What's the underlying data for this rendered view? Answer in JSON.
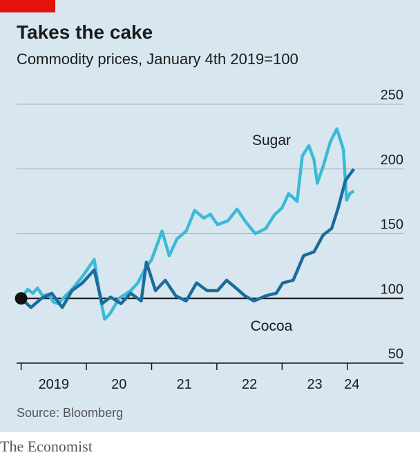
{
  "chart_data": {
    "type": "line",
    "title": "Takes the cake",
    "subtitle": "Commodity prices, January 4th 2019=100",
    "source": "Source: Bloomberg",
    "brand": "The Economist",
    "ylim": [
      50,
      250
    ],
    "yticks": [
      50,
      100,
      150,
      200,
      250
    ],
    "baseline": 100,
    "xlim": [
      2018.93,
      2024.86
    ],
    "xticks": [
      2019,
      2020,
      2021,
      2022,
      2023,
      2024
    ],
    "xlabels": [
      {
        "value": 2019.5,
        "label": "2019"
      },
      {
        "value": 2020.5,
        "label": "20"
      },
      {
        "value": 2021.5,
        "label": "21"
      },
      {
        "value": 2022.5,
        "label": "22"
      },
      {
        "value": 2023.5,
        "label": "23"
      },
      {
        "value": 2024.07,
        "label": "24"
      }
    ],
    "grid": true,
    "series": [
      {
        "name": "Sugar",
        "color": "#3bbad6",
        "x": [
          2019.0,
          2019.1,
          2019.18,
          2019.25,
          2019.33,
          2019.42,
          2019.5,
          2019.57,
          2019.68,
          2019.78,
          2019.94,
          2020.12,
          2020.21,
          2020.28,
          2020.36,
          2020.5,
          2020.68,
          2020.79,
          2020.89,
          2021.0,
          2021.16,
          2021.27,
          2021.39,
          2021.53,
          2021.66,
          2021.8,
          2021.9,
          2022.01,
          2022.17,
          2022.31,
          2022.43,
          2022.59,
          2022.75,
          2022.89,
          2023.0,
          2023.1,
          2023.23,
          2023.31,
          2023.41,
          2023.49,
          2023.54,
          2023.63,
          2023.74,
          2023.84,
          2023.94,
          2023.99,
          2024.04,
          2024.1
        ],
        "values": [
          100,
          107,
          104,
          108,
          102,
          103,
          97,
          96,
          102,
          107,
          117,
          130,
          101,
          84,
          88,
          100,
          106,
          112,
          122,
          130,
          152,
          133,
          146,
          152,
          168,
          162,
          165,
          157,
          160,
          169,
          160,
          150,
          154,
          165,
          170,
          181,
          175,
          210,
          218,
          207,
          189,
          202,
          221,
          231,
          215,
          176,
          181,
          183
        ]
      },
      {
        "name": "Cocoa",
        "color": "#1a6c9c",
        "x": [
          2019.0,
          2019.15,
          2019.31,
          2019.47,
          2019.63,
          2019.78,
          2019.94,
          2020.12,
          2020.24,
          2020.37,
          2020.53,
          2020.68,
          2020.84,
          2020.92,
          2021.06,
          2021.21,
          2021.37,
          2021.53,
          2021.69,
          2021.85,
          2022.01,
          2022.15,
          2022.27,
          2022.43,
          2022.57,
          2022.75,
          2022.91,
          2023.01,
          2023.17,
          2023.33,
          2023.49,
          2023.63,
          2023.76,
          2023.86,
          2023.97,
          2024.1
        ],
        "values": [
          100,
          93,
          100,
          104,
          93,
          106,
          112,
          122,
          96,
          101,
          96,
          104,
          98,
          128,
          106,
          114,
          102,
          98,
          112,
          106,
          106,
          114,
          109,
          102,
          98,
          102,
          104,
          112,
          114,
          133,
          136,
          149,
          154,
          170,
          191,
          200
        ]
      }
    ]
  }
}
